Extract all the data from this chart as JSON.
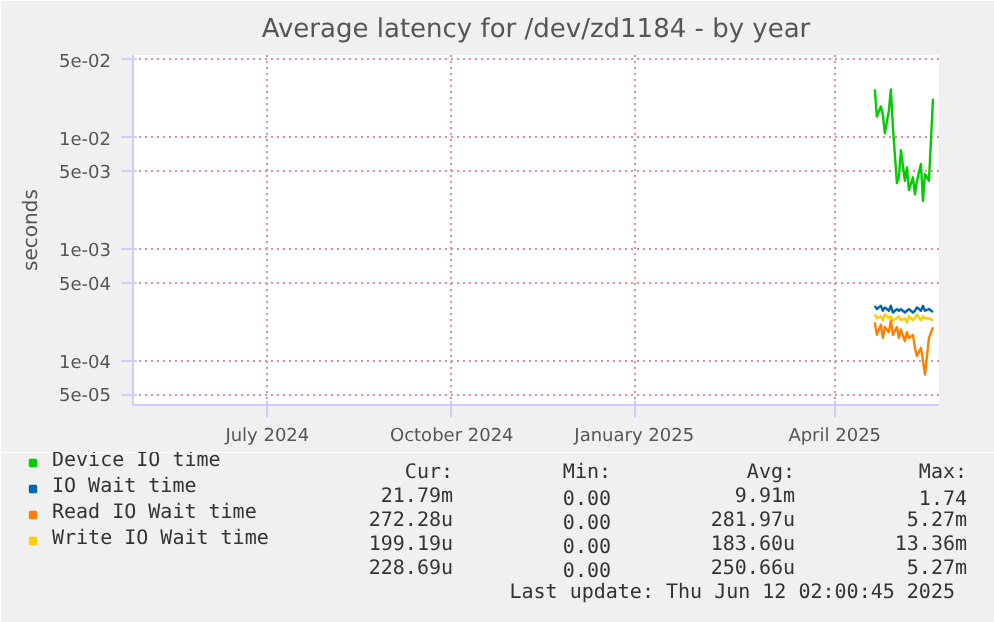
{
  "chart_data": {
    "type": "line",
    "title": "Average latency for /dev/zd1184 - by year",
    "ylabel": "seconds",
    "log": "y",
    "x": [
      "2025-05-14",
      "2025-05-15",
      "2025-05-17",
      "2025-05-18",
      "2025-05-19",
      "2025-05-21",
      "2025-05-22",
      "2025-05-23",
      "2025-05-25",
      "2025-05-26",
      "2025-05-27",
      "2025-05-29",
      "2025-05-30",
      "2025-05-31",
      "2025-06-02",
      "2025-06-03",
      "2025-06-04",
      "2025-06-06",
      "2025-06-07",
      "2025-06-08",
      "2025-06-10",
      "2025-06-12"
    ],
    "series": [
      {
        "name": "Device IO time",
        "color": "#00cc00",
        "values": [
          0.027,
          0.0154,
          0.019,
          0.016,
          0.0109,
          0.0176,
          0.027,
          0.0125,
          0.0039,
          0.0044,
          0.0077,
          0.0041,
          0.0054,
          0.0034,
          0.0044,
          0.0031,
          0.0041,
          0.0058,
          0.0027,
          0.0047,
          0.0041,
          0.0223
        ]
      },
      {
        "name": "IO Wait time",
        "color": "#0066b3",
        "values": [
          0.00031,
          0.00029,
          0.00031,
          0.00028,
          0.0003,
          0.00028,
          0.00031,
          0.00027,
          0.00029,
          0.00028,
          0.00029,
          0.00027,
          0.00028,
          0.00029,
          0.00027,
          0.00028,
          0.0003,
          0.00028,
          0.00031,
          0.00028,
          0.00029,
          0.000272
        ]
      },
      {
        "name": "Read IO Wait time",
        "color": "#ff8000",
        "values": [
          0.00022,
          0.00017,
          0.00021,
          0.00016,
          0.0002,
          0.00018,
          0.00023,
          0.00017,
          0.0002,
          0.00016,
          0.00019,
          0.00015,
          0.00018,
          0.00016,
          0.00017,
          0.00013,
          0.00011,
          0.00013,
          0.0001,
          7.5e-05,
          0.00016,
          0.000199
        ]
      },
      {
        "name": "Write IO Wait time",
        "color": "#ffcc00",
        "values": [
          0.00026,
          0.00024,
          0.00025,
          0.00023,
          0.00026,
          0.00024,
          0.00025,
          0.00023,
          0.00024,
          0.00025,
          0.00023,
          0.00024,
          0.00022,
          0.00025,
          0.00023,
          0.00024,
          0.00026,
          0.00023,
          0.00025,
          0.00024,
          0.00024,
          0.000229
        ]
      }
    ],
    "xlim": [
      "2024-05-09",
      "2025-06-15"
    ],
    "xticks": [
      {
        "value": "2024-07-15",
        "label": "July 2024"
      },
      {
        "value": "2024-10-15",
        "label": "October 2024"
      },
      {
        "value": "2025-01-14",
        "label": "January 2025"
      },
      {
        "value": "2025-04-24",
        "label": "April 2025"
      }
    ],
    "ylim": [
      4e-05,
      0.055
    ],
    "yticks": [
      {
        "value": 0.05,
        "label": "5e-02"
      },
      {
        "value": 0.01,
        "label": "1e-02"
      },
      {
        "value": 0.005,
        "label": "5e-03"
      },
      {
        "value": 0.001,
        "label": "1e-03"
      },
      {
        "value": 0.0005,
        "label": "5e-04"
      },
      {
        "value": 0.0001,
        "label": "1e-04"
      },
      {
        "value": 5e-05,
        "label": "5e-05"
      }
    ],
    "grid": true,
    "legend": "bottom",
    "marker": "none",
    "line_style": "solid",
    "annotations": [
      "Cur:",
      "Min:",
      "Avg:",
      "Max:",
      "21.79m",
      "0.00",
      "9.91m",
      "1.74",
      "272.28u",
      "0.00",
      "281.97u",
      "5.27m",
      "199.19u",
      "0.00",
      "183.60u",
      "13.36m",
      "228.69u",
      "0.00",
      "250.66u",
      "5.27m",
      "Last update:  Thu Jun 12 02:00:45 2025"
    ]
  }
}
